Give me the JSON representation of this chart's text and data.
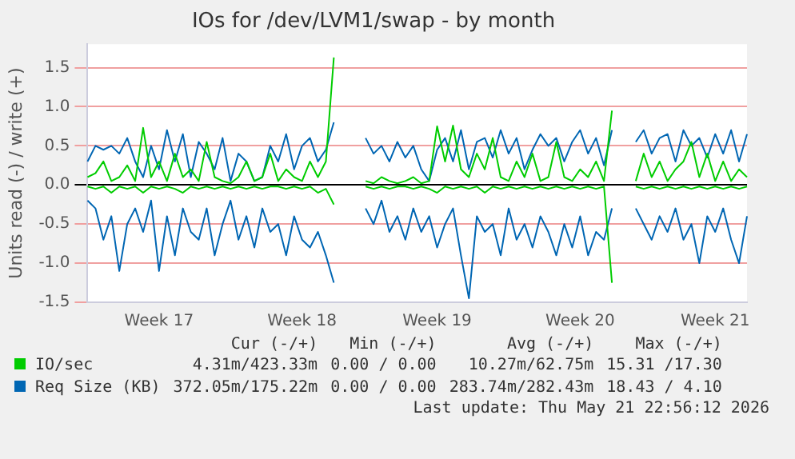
{
  "chart_data": {
    "type": "line",
    "title": "IOs for /dev/LVM1/swap - by month",
    "ylabel": "Units read (-) / write (+)",
    "categories": [
      null,
      null,
      null,
      null,
      null,
      null,
      null,
      null,
      null,
      "Week 17",
      null,
      null,
      null,
      null,
      null,
      null,
      null,
      null,
      null,
      null,
      null,
      null,
      null,
      null,
      null,
      null,
      null,
      "Week 18",
      null,
      null,
      null,
      null,
      null,
      null,
      null,
      null,
      null,
      null,
      null,
      null,
      null,
      null,
      null,
      null,
      "Week 19",
      null,
      null,
      null,
      null,
      null,
      null,
      null,
      null,
      null,
      null,
      null,
      null,
      null,
      null,
      null,
      null,
      null,
      "Week 20",
      null,
      null,
      null,
      null,
      null,
      null,
      null,
      null,
      null,
      null,
      null,
      null,
      null,
      null,
      null,
      null,
      "Week 21",
      null,
      null,
      null,
      null
    ],
    "ylim": [
      -1.5,
      1.8
    ],
    "yticks": [
      {
        "value": -1.5,
        "label": "-1.5"
      },
      {
        "value": -1,
        "label": "-1.0"
      },
      {
        "value": -0.5,
        "label": "-0.5"
      },
      {
        "value": 0,
        "label": "0.0"
      },
      {
        "value": 0.5,
        "label": "0.5"
      },
      {
        "value": 1,
        "label": "1.0"
      },
      {
        "value": 1.5,
        "label": "1.5"
      }
    ],
    "grid": "y",
    "legend": "bottom",
    "marker": "none",
    "line_style": "solid",
    "series": [
      {
        "name": "IO/sec",
        "color": "#00cc00",
        "values": [
          0.1,
          0.15,
          0.3,
          0.05,
          0.1,
          0.25,
          0.05,
          0.73,
          0.1,
          0.3,
          0.05,
          0.4,
          0.1,
          0.2,
          0.05,
          0.55,
          0.1,
          0.05,
          0.02,
          0.1,
          0.3,
          0.05,
          0.1,
          0.4,
          0.05,
          0.2,
          0.1,
          0.05,
          0.3,
          0.1,
          0.3,
          1.63,
          null,
          null,
          null,
          0.05,
          0.02,
          0.1,
          0.05,
          0.02,
          0.05,
          0.1,
          0.02,
          0.05,
          0.75,
          0.3,
          0.76,
          0.2,
          0.1,
          0.4,
          0.2,
          0.6,
          0.1,
          0.05,
          0.3,
          0.1,
          0.4,
          0.05,
          0.1,
          0.55,
          0.1,
          0.05,
          0.2,
          0.1,
          0.3,
          0.05,
          0.95,
          null,
          null,
          0.05,
          0.4,
          0.1,
          0.3,
          0.05,
          0.2,
          0.3,
          0.55,
          0.1,
          0.4,
          0.05,
          0.3,
          0.05,
          0.2,
          0.1
        ]
      },
      {
        "color": "#00cc00",
        "values": [
          -0.02,
          -0.05,
          -0.02,
          -0.1,
          -0.02,
          -0.05,
          -0.02,
          -0.1,
          -0.02,
          -0.05,
          -0.02,
          -0.05,
          -0.1,
          -0.02,
          -0.05,
          -0.02,
          -0.05,
          -0.02,
          -0.05,
          -0.02,
          -0.05,
          -0.02,
          -0.05,
          -0.02,
          -0.02,
          -0.05,
          -0.02,
          -0.05,
          -0.02,
          -0.1,
          -0.05,
          -0.25,
          null,
          null,
          null,
          -0.02,
          -0.05,
          -0.02,
          -0.05,
          -0.02,
          -0.02,
          -0.05,
          -0.02,
          -0.05,
          -0.1,
          -0.02,
          -0.05,
          -0.02,
          -0.05,
          -0.02,
          -0.1,
          -0.02,
          -0.05,
          -0.02,
          -0.05,
          -0.02,
          -0.05,
          -0.02,
          -0.05,
          -0.02,
          -0.05,
          -0.02,
          -0.05,
          -0.02,
          -0.05,
          -0.02,
          -1.25,
          null,
          null,
          -0.02,
          -0.05,
          -0.02,
          -0.05,
          -0.02,
          -0.05,
          -0.02,
          -0.05,
          -0.02,
          -0.05,
          -0.02,
          -0.05,
          -0.02,
          -0.05,
          -0.02
        ]
      },
      {
        "name": "Req Size (KB)",
        "color": "#0066b3",
        "values": [
          0.3,
          0.5,
          0.45,
          0.5,
          0.4,
          0.6,
          0.3,
          0.1,
          0.5,
          0.2,
          0.7,
          0.3,
          0.65,
          0.1,
          0.55,
          0.4,
          0.2,
          0.6,
          0.05,
          0.4,
          0.3,
          0.05,
          0.1,
          0.5,
          0.3,
          0.65,
          0.2,
          0.5,
          0.6,
          0.3,
          0.45,
          0.8,
          null,
          null,
          null,
          0.6,
          0.4,
          0.5,
          0.3,
          0.55,
          0.35,
          0.5,
          0.2,
          0.05,
          0.45,
          0.6,
          0.3,
          0.7,
          0.2,
          0.55,
          0.6,
          0.35,
          0.7,
          0.4,
          0.6,
          0.2,
          0.45,
          0.65,
          0.5,
          0.6,
          0.3,
          0.55,
          0.7,
          0.4,
          0.6,
          0.25,
          0.7,
          null,
          null,
          0.55,
          0.7,
          0.4,
          0.6,
          0.65,
          0.3,
          0.7,
          0.5,
          0.6,
          0.35,
          0.65,
          0.4,
          0.7,
          0.3,
          0.65
        ]
      },
      {
        "color": "#0066b3",
        "values": [
          -0.2,
          -0.3,
          -0.7,
          -0.4,
          -1.1,
          -0.5,
          -0.3,
          -0.6,
          -0.2,
          -1.1,
          -0.4,
          -0.9,
          -0.3,
          -0.6,
          -0.7,
          -0.3,
          -0.9,
          -0.5,
          -0.2,
          -0.7,
          -0.4,
          -0.8,
          -0.3,
          -0.6,
          -0.5,
          -0.9,
          -0.4,
          -0.7,
          -0.8,
          -0.6,
          -0.9,
          -1.25,
          null,
          null,
          null,
          -0.3,
          -0.5,
          -0.2,
          -0.6,
          -0.4,
          -0.7,
          -0.3,
          -0.6,
          -0.4,
          -0.8,
          -0.5,
          -0.3,
          -0.9,
          -1.45,
          -0.4,
          -0.6,
          -0.5,
          -0.9,
          -0.3,
          -0.7,
          -0.5,
          -0.8,
          -0.4,
          -0.6,
          -0.9,
          -0.5,
          -0.8,
          -0.4,
          -0.9,
          -0.6,
          -0.7,
          -0.3,
          null,
          null,
          -0.3,
          -0.5,
          -0.7,
          -0.4,
          -0.6,
          -0.3,
          -0.7,
          -0.5,
          -1.0,
          -0.4,
          -0.6,
          -0.3,
          -0.7,
          -1.0,
          -0.4
        ]
      }
    ],
    "annotations": [
      "Cur (-/+)",
      "Min (-/+)",
      "Avg (-/+)",
      "Max (-/+)",
      "4.31m/423.33m",
      "0.00 / 0.00",
      "10.27m/62.75m",
      "15.31 /17.30",
      "372.05m/175.22m",
      "0.00 / 0.00",
      "283.74m/282.43m",
      "18.43 / 4.10",
      "Last update: Thu May 21 22:56:12 2026"
    ]
  }
}
